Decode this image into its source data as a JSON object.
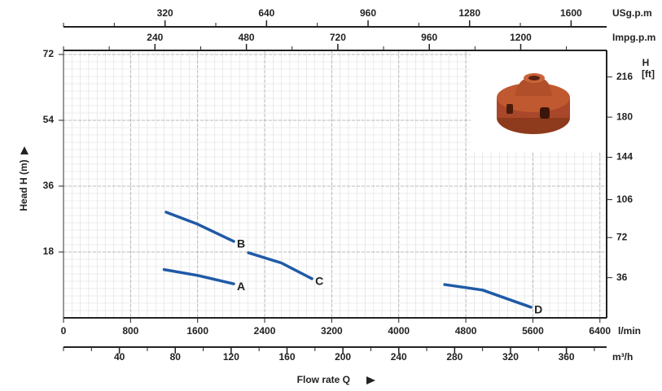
{
  "chart_data": {
    "type": "line",
    "x_label": "Flow rate Q",
    "y_label": "Head H (m)",
    "x_unit": "l/min",
    "xlim": [
      0,
      6480
    ],
    "xticks": [
      0,
      800,
      1600,
      2400,
      3200,
      4000,
      4800,
      5600,
      6400
    ],
    "ylim": [
      0,
      72
    ],
    "yticks": [
      18,
      36,
      54,
      72
    ],
    "y2_label": "H",
    "y2_unit": "[ft]",
    "y2lim": [
      0,
      236.2
    ],
    "y2ticks": [
      36,
      72,
      106,
      144,
      180,
      216
    ],
    "extra_x_axes": [
      {
        "unit": "m³/h",
        "xlim": [
          0,
          388.8
        ],
        "ticks": [
          40,
          80,
          120,
          160,
          200,
          240,
          280,
          320,
          360
        ]
      },
      {
        "unit": "USg.p.m",
        "xlim": [
          0,
          1712
        ],
        "ticks": [
          320,
          640,
          960,
          1280,
          1600
        ]
      },
      {
        "unit": "Impg.p.m",
        "xlim": [
          0,
          1425.5
        ],
        "ticks": [
          240,
          480,
          720,
          960,
          1200
        ]
      }
    ],
    "grid": true,
    "series": [
      {
        "name": "A",
        "color": "#1f5aa6",
        "x": [
          1200,
          1600,
          2031
        ],
        "values": [
          13.2,
          11.6,
          9.3
        ]
      },
      {
        "name": "B",
        "color": "#1f5aa6",
        "x": [
          1224,
          1600,
          2031
        ],
        "values": [
          28.9,
          25.6,
          20.9
        ]
      },
      {
        "name": "C",
        "color": "#1f5aa6",
        "x": [
          2206,
          2600,
          2964
        ],
        "values": [
          17.8,
          15,
          10.7
        ]
      },
      {
        "name": "D",
        "color": "#1f5aa6",
        "x": [
          4548,
          5000,
          5578
        ],
        "values": [
          9.1,
          7.6,
          2.9
        ]
      }
    ]
  }
}
